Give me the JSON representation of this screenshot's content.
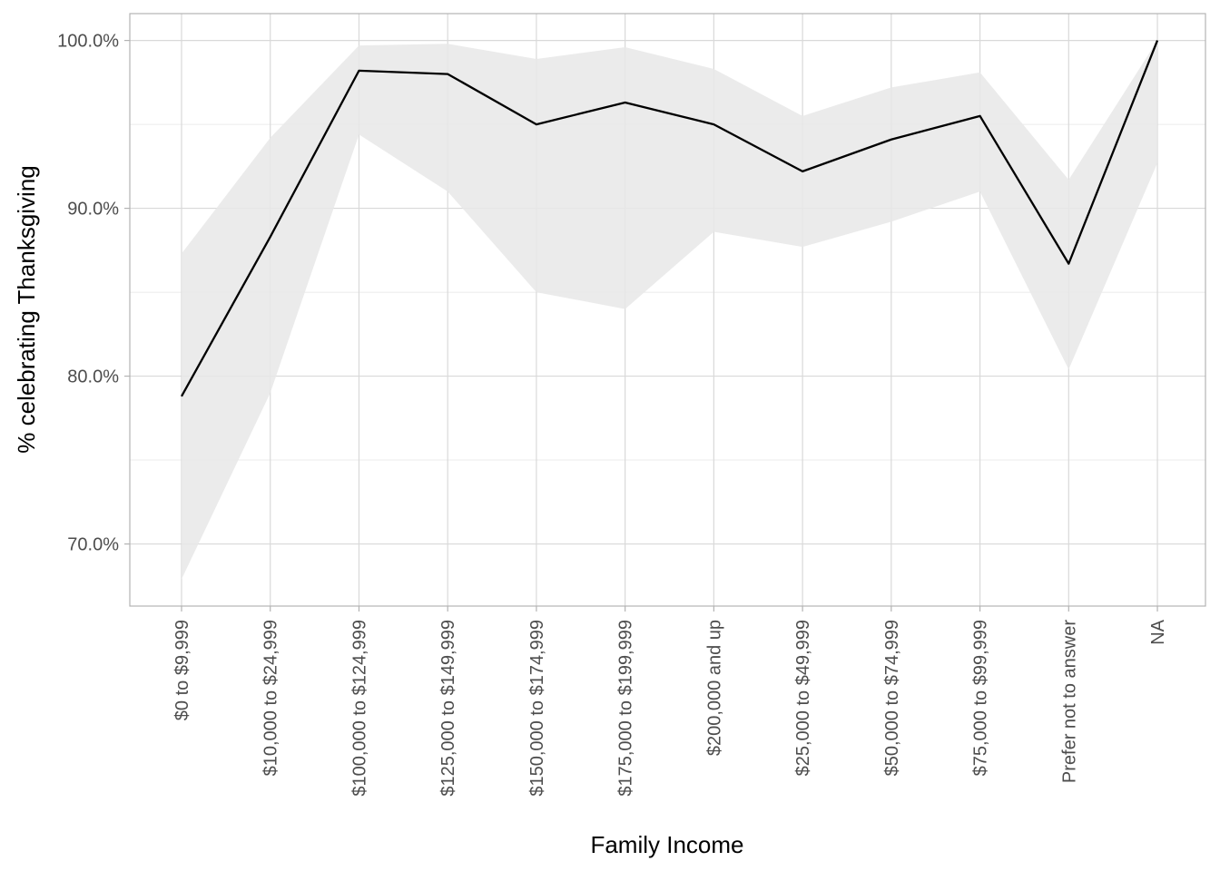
{
  "chart_data": {
    "type": "line",
    "title": "",
    "xlabel": "Family Income",
    "ylabel": "% celebrating Thanksgiving",
    "categories": [
      "$0 to $9,999",
      "$10,000 to $24,999",
      "$100,000 to $124,999",
      "$125,000 to $149,999",
      "$150,000 to $174,999",
      "$175,000 to $199,999",
      "$200,000 and up",
      "$25,000 to $49,999",
      "$50,000 to $74,999",
      "$75,000 to $99,999",
      "Prefer not to answer",
      "NA"
    ],
    "series": [
      {
        "values": [
          78.8,
          88.3,
          98.2,
          98.0,
          95.0,
          96.3,
          95.0,
          92.2,
          94.1,
          95.5,
          86.7,
          100.0
        ],
        "ci_lower": [
          67.9,
          79.0,
          94.4,
          91.0,
          85.0,
          84.0,
          88.6,
          87.7,
          89.2,
          91.0,
          80.4,
          92.7
        ],
        "ci_upper": [
          87.3,
          94.2,
          99.7,
          99.8,
          98.9,
          99.6,
          98.3,
          95.5,
          97.2,
          98.1,
          91.7,
          100.0
        ]
      }
    ],
    "yticks": [
      "70.0%",
      "80.0%",
      "90.0%",
      "100.0%"
    ],
    "ytick_values": [
      70,
      80,
      90,
      100
    ],
    "ylim": [
      66.3,
      101.6
    ],
    "grid": true,
    "legend": "none",
    "colors": {
      "line": "#000000",
      "ribbon": "#e8e8e8",
      "grid_major": "#d9d9d9",
      "grid_minor": "#ebebeb",
      "panel_border": "#b3b3b3",
      "tick_text": "#4d4d4d"
    }
  }
}
